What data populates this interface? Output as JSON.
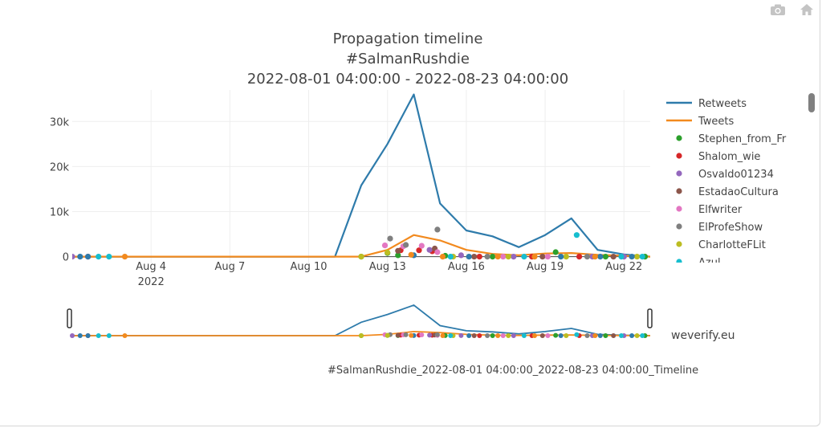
{
  "toolbar": {
    "camera_icon": "camera-icon",
    "home_icon": "home-icon"
  },
  "watermark": "weverify.eu",
  "filename_caption": "#SalmanRushdie_2022-08-01 04:00:00_2022-08-23 04:00:00_Timeline",
  "chart_data": {
    "type": "line",
    "title": [
      "Propagation timeline",
      "#SalmanRushdie",
      "2022-08-01 04:00:00 - 2022-08-23 04:00:00"
    ],
    "xlabel": "",
    "ylabel": "",
    "x_range": [
      "2022-08-01",
      "2022-08-23"
    ],
    "ylim": [
      -1500,
      37000
    ],
    "y_ticks": [
      0,
      10000,
      20000,
      30000
    ],
    "y_tick_labels": [
      "0",
      "10k",
      "20k",
      "30k"
    ],
    "x_ticks": [
      "2022-08-04",
      "2022-08-07",
      "2022-08-10",
      "2022-08-13",
      "2022-08-16",
      "2022-08-19",
      "2022-08-22"
    ],
    "x_tick_labels": [
      "Aug 4",
      "Aug 7",
      "Aug 10",
      "Aug 13",
      "Aug 16",
      "Aug 19",
      "Aug 22"
    ],
    "x_tick_sublabel": "2022",
    "grid": true,
    "legend_position": "right",
    "series": [
      {
        "name": "Retweets",
        "mode": "line",
        "color": "#2e7bab",
        "points": [
          [
            "2022-08-01",
            0
          ],
          [
            "2022-08-11",
            0
          ],
          [
            "2022-08-12",
            15800
          ],
          [
            "2022-08-13",
            25000
          ],
          [
            "2022-08-14",
            36000
          ],
          [
            "2022-08-15",
            11800
          ],
          [
            "2022-08-16",
            5800
          ],
          [
            "2022-08-17",
            4500
          ],
          [
            "2022-08-18",
            2100
          ],
          [
            "2022-08-19",
            4800
          ],
          [
            "2022-08-20",
            8500
          ],
          [
            "2022-08-21",
            1500
          ],
          [
            "2022-08-22",
            500
          ],
          [
            "2022-08-23",
            0
          ]
        ]
      },
      {
        "name": "Tweets",
        "mode": "line",
        "color": "#f28a1e",
        "points": [
          [
            "2022-08-01",
            0
          ],
          [
            "2022-08-12",
            0
          ],
          [
            "2022-08-13",
            1500
          ],
          [
            "2022-08-14",
            4800
          ],
          [
            "2022-08-15",
            3600
          ],
          [
            "2022-08-16",
            1500
          ],
          [
            "2022-08-17",
            600
          ],
          [
            "2022-08-18",
            300
          ],
          [
            "2022-08-19",
            700
          ],
          [
            "2022-08-20",
            800
          ],
          [
            "2022-08-21",
            400
          ],
          [
            "2022-08-22",
            200
          ],
          [
            "2022-08-23",
            0
          ]
        ]
      },
      {
        "name": "Stephen_from_Fr",
        "mode": "markers",
        "color": "#2ca02c",
        "points": [
          [
            "2022-08-12",
            0
          ],
          [
            "2022-08-13",
            800
          ],
          [
            "2022-08-13.4",
            300
          ],
          [
            "2022-08-15.2",
            200
          ],
          [
            "2022-08-17",
            0
          ],
          [
            "2022-08-19.4",
            1000
          ],
          [
            "2022-08-21.3",
            0
          ],
          [
            "2022-08-22.8",
            0
          ]
        ]
      },
      {
        "name": "Shalom_wie",
        "mode": "markers",
        "color": "#d62728",
        "points": [
          [
            "2022-08-01.6",
            0
          ],
          [
            "2022-08-13.5",
            1400
          ],
          [
            "2022-08-14.2",
            1400
          ],
          [
            "2022-08-14.7",
            1200
          ],
          [
            "2022-08-16.5",
            0
          ],
          [
            "2022-08-18.5",
            0
          ],
          [
            "2022-08-20.3",
            0
          ]
        ]
      },
      {
        "name": "Osvaldo01234",
        "mode": "markers",
        "color": "#9467bd",
        "points": [
          [
            "2022-08-01.0",
            0
          ],
          [
            "2022-08-14.6",
            1500
          ],
          [
            "2022-08-15.8",
            300
          ],
          [
            "2022-08-17.8",
            0
          ],
          [
            "2022-08-20.8",
            0
          ],
          [
            "2022-08-22.0",
            0
          ]
        ]
      },
      {
        "name": "EstadaoCultura",
        "mode": "markers",
        "color": "#8c564b",
        "points": [
          [
            "2022-08-13.4",
            1300
          ],
          [
            "2022-08-14.8",
            1800
          ],
          [
            "2022-08-16.3",
            0
          ],
          [
            "2022-08-18.9",
            0
          ],
          [
            "2022-08-21.6",
            0
          ]
        ]
      },
      {
        "name": "Elfwriter",
        "mode": "markers",
        "color": "#e377c2",
        "points": [
          [
            "2022-08-12.9",
            2500
          ],
          [
            "2022-08-13.6",
            2300
          ],
          [
            "2022-08-14.3",
            2400
          ],
          [
            "2022-08-14.9",
            1000
          ],
          [
            "2022-08-17.4",
            0
          ],
          [
            "2022-08-19.1",
            0
          ]
        ]
      },
      {
        "name": "ElProfeShow",
        "mode": "markers",
        "color": "#7f7f7f",
        "points": [
          [
            "2022-08-13.1",
            4000
          ],
          [
            "2022-08-13.7",
            2600
          ],
          [
            "2022-08-14.9",
            6000
          ],
          [
            "2022-08-16.8",
            0
          ],
          [
            "2022-08-20.6",
            0
          ]
        ]
      },
      {
        "name": "CharlotteFLit",
        "mode": "markers",
        "color": "#bcbd22",
        "points": [
          [
            "2022-08-12.0",
            0
          ],
          [
            "2022-08-13.0",
            900
          ],
          [
            "2022-08-15.5",
            0
          ],
          [
            "2022-08-17.6",
            0
          ],
          [
            "2022-08-19.8",
            0
          ],
          [
            "2022-08-22.5",
            0
          ]
        ]
      },
      {
        "name": "",
        "mode": "markers",
        "color": "#17becf",
        "points": [
          [
            "2022-08-02.0",
            0
          ],
          [
            "2022-08-02.4",
            0
          ],
          [
            "2022-08-20.2",
            4800
          ],
          [
            "2022-08-15.4",
            0
          ],
          [
            "2022-08-18.2",
            0
          ],
          [
            "2022-08-21.9",
            0
          ],
          [
            "2022-08-22.7",
            0
          ]
        ]
      },
      {
        "name": "",
        "mode": "markers",
        "color": "#2e7bab",
        "points": [
          [
            "2022-08-01.3",
            0
          ],
          [
            "2022-08-01.6",
            0
          ],
          [
            "2022-08-14.0",
            300
          ],
          [
            "2022-08-16.1",
            0
          ],
          [
            "2022-08-19.6",
            0
          ],
          [
            "2022-08-21.1",
            0
          ],
          [
            "2022-08-22.3",
            0
          ]
        ]
      },
      {
        "name": "",
        "mode": "markers",
        "color": "#f28a1e",
        "points": [
          [
            "2022-08-03.0",
            0
          ],
          [
            "2022-08-13.9",
            400
          ],
          [
            "2022-08-15.1",
            0
          ],
          [
            "2022-08-17.2",
            0
          ],
          [
            "2022-08-18.6",
            0
          ],
          [
            "2022-08-20.9",
            0
          ]
        ]
      }
    ],
    "partial_legend_label": "Azul..."
  }
}
